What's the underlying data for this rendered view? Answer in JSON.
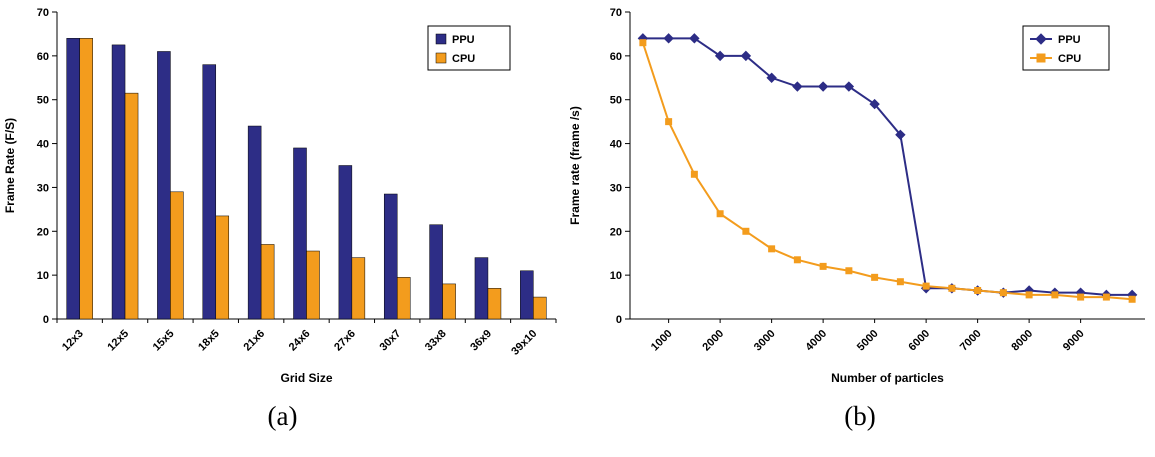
{
  "captions": {
    "a": "(a)",
    "b": "(b)"
  },
  "colors": {
    "ppu": "#2d2d86",
    "cpu": "#f39c1d",
    "axis": "#000000"
  },
  "chart_data": [
    {
      "id": "bar-chart-a",
      "type": "bar",
      "title": "",
      "xlabel": "Grid Size",
      "ylabel": "Frame Rate (F/S)",
      "ylim": [
        0,
        70
      ],
      "ytick_step": 10,
      "grid": false,
      "legend_position": "top-right",
      "categories": [
        "12x3",
        "12x5",
        "15x5",
        "18x5",
        "21x6",
        "24x6",
        "27x6",
        "30x7",
        "33x8",
        "36x9",
        "39x10"
      ],
      "series": [
        {
          "name": "PPU",
          "color": "#2d2d86",
          "values": [
            64,
            62.5,
            61,
            58,
            44,
            39,
            35,
            28.5,
            21.5,
            14,
            11
          ]
        },
        {
          "name": "CPU",
          "color": "#f39c1d",
          "values": [
            64,
            51.5,
            29,
            23.5,
            17,
            15.5,
            14,
            9.5,
            8,
            7,
            5
          ]
        }
      ]
    },
    {
      "id": "line-chart-b",
      "type": "line",
      "title": "",
      "xlabel": "Number of particles",
      "ylabel": "Frame rate (frame /s)",
      "ylim": [
        0,
        70
      ],
      "ytick_step": 10,
      "grid": false,
      "legend_position": "top-right",
      "x": [
        500,
        1000,
        1500,
        2000,
        2500,
        3000,
        3500,
        4000,
        4500,
        5000,
        5500,
        6000,
        6500,
        7000,
        7500,
        8000,
        8500,
        9000,
        9500,
        10000
      ],
      "xtick_labels": [
        "1000",
        "2000",
        "3000",
        "4000",
        "5000",
        "6000",
        "7000",
        "8000",
        "9000"
      ],
      "xtick_every": 2,
      "series": [
        {
          "name": "PPU",
          "color": "#2d2d86",
          "marker": "diamond",
          "values": [
            64,
            64,
            64,
            60,
            60,
            55,
            53,
            53,
            53,
            49,
            42,
            7,
            7,
            6.5,
            6,
            6.5,
            6,
            6,
            5.5,
            5.5
          ]
        },
        {
          "name": "CPU",
          "color": "#f39c1d",
          "marker": "square",
          "values": [
            63,
            45,
            33,
            24,
            20,
            16,
            13.5,
            12,
            11,
            9.5,
            8.5,
            7.5,
            7,
            6.5,
            6,
            5.5,
            5.5,
            5,
            5,
            4.5
          ]
        }
      ]
    }
  ]
}
